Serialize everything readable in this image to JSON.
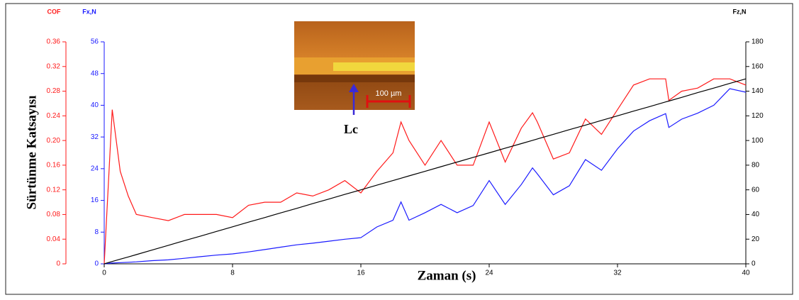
{
  "chart_data": {
    "type": "line",
    "y_axis_label": "Sürtünme Katsayısı",
    "x_axis_label": "Zaman (s)",
    "y_unit": "COF",
    "y2_unit": "Fx,N",
    "y3_unit": "Fz,N",
    "inset_scale_label": "100 µm",
    "inset_marker_label": "Lc",
    "x": [
      0,
      0.5,
      1,
      1.5,
      2,
      3,
      4,
      5,
      6,
      7,
      8,
      9,
      10,
      11,
      12,
      13,
      14,
      15,
      16,
      17,
      18,
      18.5,
      19,
      20,
      21,
      22,
      23,
      24,
      25,
      26,
      26.7,
      27,
      28,
      29,
      30,
      31,
      32,
      33,
      34,
      35,
      35.2,
      36,
      37,
      38,
      39,
      40
    ],
    "series": [
      {
        "name": "COF",
        "color": "#ff1a1a",
        "axis": "y",
        "values": [
          0,
          0.25,
          0.15,
          0.11,
          0.08,
          0.075,
          0.07,
          0.08,
          0.08,
          0.08,
          0.075,
          0.095,
          0.1,
          0.1,
          0.115,
          0.11,
          0.12,
          0.135,
          0.115,
          0.15,
          0.18,
          0.23,
          0.2,
          0.16,
          0.2,
          0.16,
          0.16,
          0.23,
          0.165,
          0.22,
          0.245,
          0.23,
          0.17,
          0.18,
          0.235,
          0.21,
          0.25,
          0.29,
          0.3,
          0.3,
          0.265,
          0.28,
          0.285,
          0.3,
          0.3,
          0.29
        ]
      },
      {
        "name": "Fx,N",
        "color": "#1a1aff",
        "axis": "y2",
        "values": [
          0,
          0.2,
          0.3,
          0.4,
          0.5,
          0.8,
          1,
          1.4,
          1.8,
          2.2,
          2.5,
          3,
          3.6,
          4.2,
          4.8,
          5.2,
          5.7,
          6.2,
          6.6,
          9.3,
          11,
          15.6,
          11,
          12.9,
          15,
          12.9,
          14.7,
          21,
          15,
          20,
          24.2,
          22.7,
          17.4,
          19.7,
          26.3,
          23.6,
          29,
          33.5,
          36.1,
          37.9,
          34.4,
          36.5,
          38,
          40,
          44.2,
          43.3
        ]
      },
      {
        "name": "Fz,N",
        "color": "#000000",
        "axis": "y3",
        "values": [
          0,
          1.9,
          3.8,
          5.6,
          7.5,
          11.3,
          15,
          18.8,
          22.5,
          26.3,
          30,
          33.8,
          37.5,
          41.3,
          45,
          48.8,
          52.5,
          56.3,
          60,
          63.8,
          67.5,
          69.4,
          71.3,
          75,
          78.8,
          82.5,
          86.3,
          90,
          93.8,
          97.5,
          100.1,
          101.3,
          105,
          108.8,
          112.5,
          116.3,
          120,
          123.8,
          127.5,
          131.3,
          132,
          135,
          138.8,
          142.5,
          146.3,
          150
        ]
      }
    ],
    "xlim": [
      0,
      40
    ],
    "xticks": [
      0,
      8,
      16,
      24,
      32,
      40
    ],
    "ylim": [
      0,
      0.36
    ],
    "yticks": [
      0,
      0.04,
      0.08,
      0.12,
      0.16,
      {
        "value": 0.2,
        "label": "0.20"
      },
      0.24,
      0.28,
      0.32,
      0.36
    ],
    "y2lim": [
      0,
      56
    ],
    "y2ticks": [
      0,
      8,
      16,
      24,
      32,
      40,
      48,
      56
    ],
    "y3lim": [
      0,
      180
    ],
    "y3ticks": [
      0,
      20,
      40,
      60,
      80,
      100,
      120,
      140,
      160,
      180
    ]
  }
}
